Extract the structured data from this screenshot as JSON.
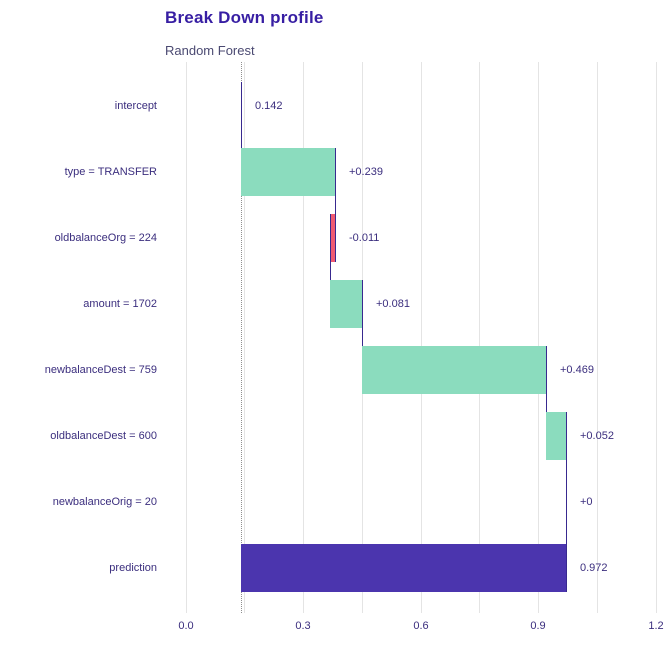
{
  "chart_data": {
    "type": "bar",
    "subtype": "breakdown-waterfall",
    "title": "Break Down profile",
    "subtitle": "Random Forest",
    "xlabel": "",
    "ylabel": "",
    "x_axis": {
      "tick_values": [
        0,
        0.3,
        0.6,
        0.9,
        1.2
      ],
      "tick_labels": [
        "0.0",
        "0.3",
        "0.6",
        "0.9",
        "1.2"
      ],
      "minor_tick_values": [
        0.15,
        0.45,
        0.75,
        1.05
      ],
      "range": [
        0,
        1.2
      ]
    },
    "baseline_intercept": 0.142,
    "legend": "none",
    "grid": "vertical-only",
    "rows": [
      {
        "label": "intercept",
        "contribution": 0.142,
        "start": 0.142,
        "end": 0.142,
        "value_label": "0.142",
        "kind": "intercept"
      },
      {
        "label": "type = TRANSFER",
        "contribution": 0.239,
        "start": 0.142,
        "end": 0.381,
        "value_label": "+0.239",
        "kind": "positive"
      },
      {
        "label": "oldbalanceOrg = 224",
        "contribution": -0.011,
        "start": 0.381,
        "end": 0.37,
        "value_label": "-0.011",
        "kind": "negative"
      },
      {
        "label": "amount = 1702",
        "contribution": 0.081,
        "start": 0.37,
        "end": 0.451,
        "value_label": "+0.081",
        "kind": "positive"
      },
      {
        "label": "newbalanceDest = 759",
        "contribution": 0.469,
        "start": 0.451,
        "end": 0.92,
        "value_label": "+0.469",
        "kind": "positive"
      },
      {
        "label": "oldbalanceDest = 600",
        "contribution": 0.052,
        "start": 0.92,
        "end": 0.972,
        "value_label": "+0.052",
        "kind": "positive"
      },
      {
        "label": "newbalanceOrig = 20",
        "contribution": 0,
        "start": 0.972,
        "end": 0.972,
        "value_label": "+0",
        "kind": "zero"
      },
      {
        "label": "prediction",
        "contribution": 0.972,
        "start": 0.142,
        "end": 0.972,
        "value_label": "0.972",
        "kind": "prediction"
      }
    ],
    "colors": {
      "positive": "#8bdcbe",
      "negative": "#f05a71",
      "prediction": "#4b35ae",
      "title_text": "#371ea3",
      "subtitle_text": "#4b4a72",
      "label_text": "#3b2e7e",
      "connector": "#38298f",
      "gridline": "#e4e4e4",
      "baseline_dotted": "#8f8f8f",
      "background": "#ffffff"
    }
  }
}
